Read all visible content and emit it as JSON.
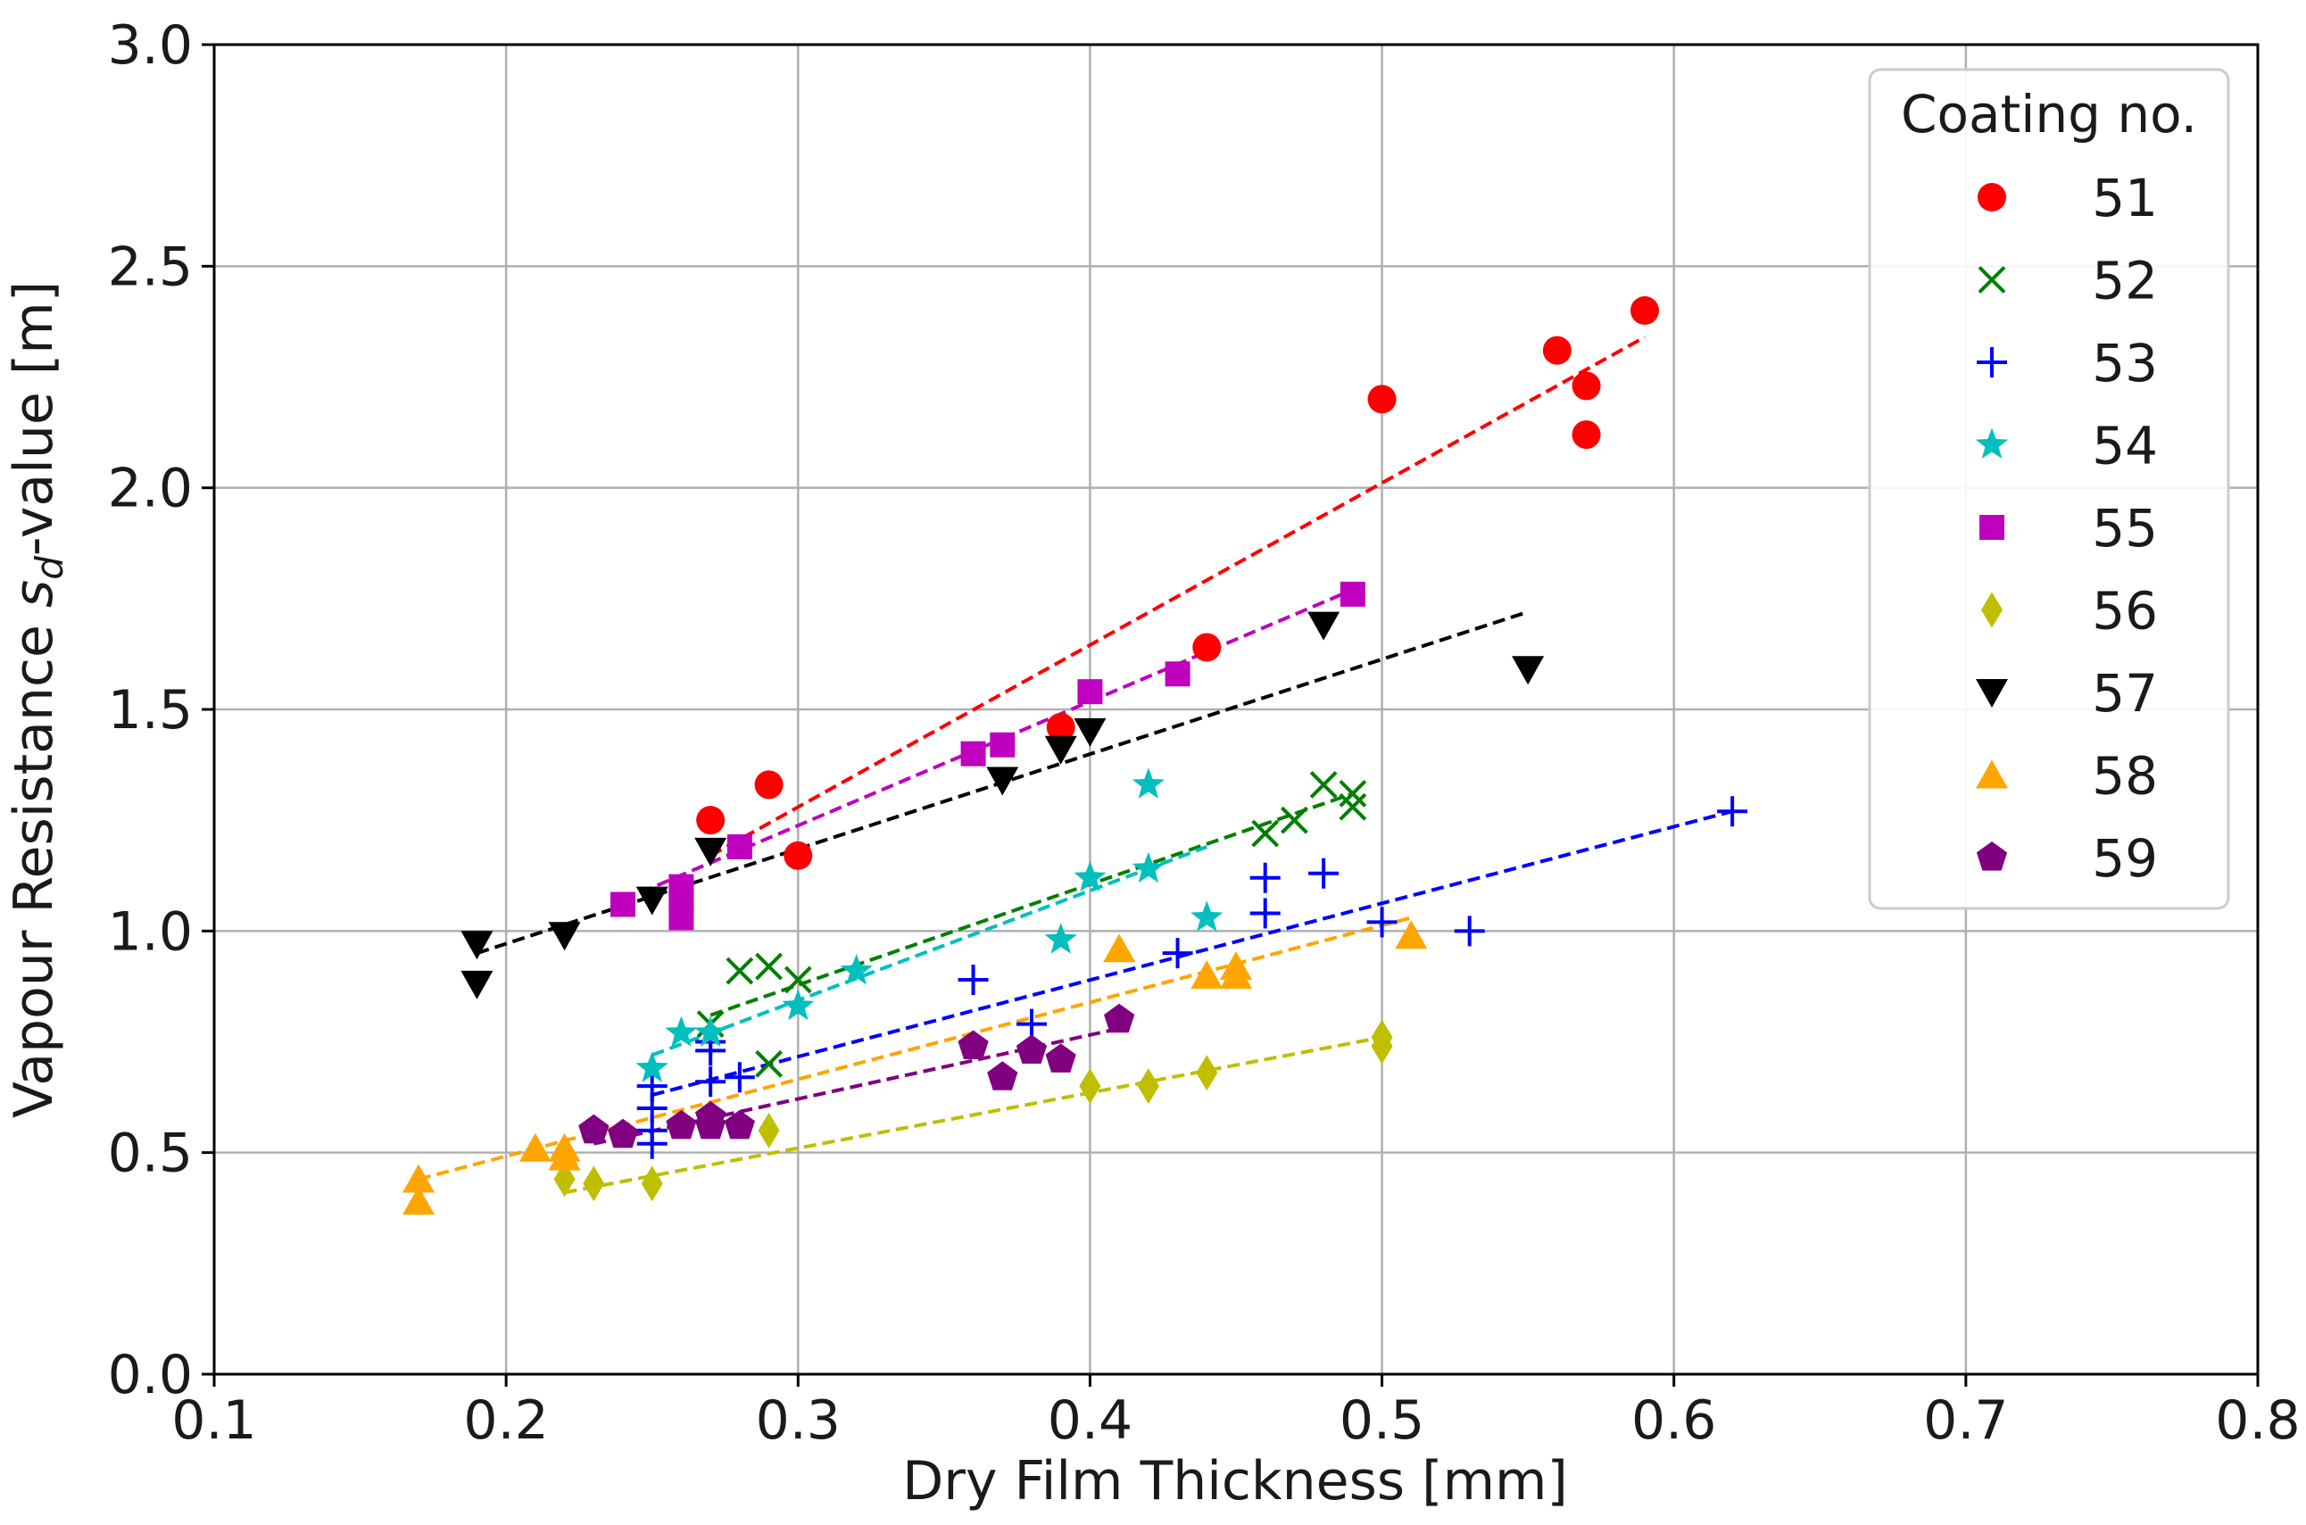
{
  "chart_data": {
    "type": "scatter",
    "title": "",
    "xlabel": "Dry Film Thickness [mm]",
    "ylabel": {
      "prefix": "Vapour Resistance ",
      "symbol": "s",
      "subscript": "d",
      "suffix": "-value [m]"
    },
    "xlim": [
      0.1,
      0.8
    ],
    "ylim": [
      0.0,
      3.0
    ],
    "xticks": [
      0.1,
      0.2,
      0.3,
      0.4,
      0.5,
      0.6,
      0.7,
      0.8
    ],
    "yticks": [
      0.0,
      0.5,
      1.0,
      1.5,
      2.0,
      2.5,
      3.0
    ],
    "xtick_labels": [
      "0.1",
      "0.2",
      "0.3",
      "0.4",
      "0.5",
      "0.6",
      "0.7",
      "0.8"
    ],
    "ytick_labels": [
      "0.0",
      "0.5",
      "1.0",
      "1.5",
      "2.0",
      "2.5",
      "3.0"
    ],
    "grid": true,
    "legend": {
      "title": "Coating no.",
      "placement": "top-right"
    },
    "series": [
      {
        "name": "51",
        "color": "#ff0000",
        "marker": "circle",
        "points": [
          [
            0.27,
            1.25
          ],
          [
            0.29,
            1.33
          ],
          [
            0.3,
            1.17
          ],
          [
            0.39,
            1.46
          ],
          [
            0.44,
            1.64
          ],
          [
            0.5,
            2.2
          ],
          [
            0.56,
            2.31
          ],
          [
            0.57,
            2.23
          ],
          [
            0.57,
            2.12
          ],
          [
            0.59,
            2.4
          ]
        ],
        "fit": [
          [
            0.27,
            1.17
          ],
          [
            0.59,
            2.34
          ]
        ]
      },
      {
        "name": "52",
        "color": "#008000",
        "marker": "x",
        "points": [
          [
            0.27,
            0.79
          ],
          [
            0.28,
            0.91
          ],
          [
            0.29,
            0.92
          ],
          [
            0.29,
            0.7
          ],
          [
            0.3,
            0.89
          ],
          [
            0.46,
            1.22
          ],
          [
            0.47,
            1.25
          ],
          [
            0.48,
            1.33
          ],
          [
            0.49,
            1.31
          ],
          [
            0.49,
            1.28
          ]
        ],
        "fit": [
          [
            0.27,
            0.81
          ],
          [
            0.49,
            1.31
          ]
        ]
      },
      {
        "name": "53",
        "color": "#0000ff",
        "marker": "plus",
        "points": [
          [
            0.25,
            0.65
          ],
          [
            0.25,
            0.6
          ],
          [
            0.25,
            0.55
          ],
          [
            0.25,
            0.52
          ],
          [
            0.27,
            0.75
          ],
          [
            0.27,
            0.73
          ],
          [
            0.27,
            0.66
          ],
          [
            0.28,
            0.67
          ],
          [
            0.36,
            0.89
          ],
          [
            0.38,
            0.79
          ],
          [
            0.43,
            0.95
          ],
          [
            0.46,
            1.12
          ],
          [
            0.46,
            1.04
          ],
          [
            0.48,
            1.13
          ],
          [
            0.5,
            1.02
          ],
          [
            0.53,
            1.0
          ],
          [
            0.62,
            1.27
          ]
        ],
        "fit": [
          [
            0.25,
            0.63
          ],
          [
            0.62,
            1.27
          ]
        ]
      },
      {
        "name": "54",
        "color": "#00bfbf",
        "marker": "star",
        "points": [
          [
            0.25,
            0.69
          ],
          [
            0.26,
            0.77
          ],
          [
            0.27,
            0.77
          ],
          [
            0.3,
            0.83
          ],
          [
            0.32,
            0.91
          ],
          [
            0.39,
            0.98
          ],
          [
            0.4,
            1.12
          ],
          [
            0.42,
            1.14
          ],
          [
            0.42,
            1.33
          ],
          [
            0.44,
            1.03
          ]
        ],
        "fit": [
          [
            0.25,
            0.72
          ],
          [
            0.44,
            1.19
          ]
        ]
      },
      {
        "name": "55",
        "color": "#bf00bf",
        "marker": "square",
        "points": [
          [
            0.24,
            1.06
          ],
          [
            0.26,
            1.1
          ],
          [
            0.26,
            1.07
          ],
          [
            0.26,
            1.03
          ],
          [
            0.28,
            1.19
          ],
          [
            0.36,
            1.4
          ],
          [
            0.37,
            1.42
          ],
          [
            0.4,
            1.54
          ],
          [
            0.43,
            1.58
          ],
          [
            0.49,
            1.76
          ]
        ],
        "fit": [
          [
            0.24,
            1.07
          ],
          [
            0.49,
            1.77
          ]
        ]
      },
      {
        "name": "56",
        "color": "#bfbf00",
        "marker": "diamond",
        "points": [
          [
            0.22,
            0.44
          ],
          [
            0.23,
            0.43
          ],
          [
            0.25,
            0.43
          ],
          [
            0.29,
            0.55
          ],
          [
            0.4,
            0.65
          ],
          [
            0.42,
            0.65
          ],
          [
            0.44,
            0.68
          ],
          [
            0.5,
            0.74
          ],
          [
            0.5,
            0.76
          ]
        ],
        "fit": [
          [
            0.22,
            0.41
          ],
          [
            0.5,
            0.76
          ]
        ]
      },
      {
        "name": "57",
        "color": "#000000",
        "marker": "triangle-down",
        "points": [
          [
            0.19,
            0.97
          ],
          [
            0.19,
            0.88
          ],
          [
            0.22,
            0.99
          ],
          [
            0.25,
            1.07
          ],
          [
            0.27,
            1.18
          ],
          [
            0.37,
            1.34
          ],
          [
            0.39,
            1.41
          ],
          [
            0.4,
            1.45
          ],
          [
            0.48,
            1.69
          ],
          [
            0.55,
            1.59
          ]
        ],
        "fit": [
          [
            0.19,
            0.95
          ],
          [
            0.55,
            1.72
          ]
        ]
      },
      {
        "name": "58",
        "color": "#ffa500",
        "marker": "triangle-up",
        "points": [
          [
            0.17,
            0.44
          ],
          [
            0.17,
            0.39
          ],
          [
            0.21,
            0.51
          ],
          [
            0.22,
            0.51
          ],
          [
            0.22,
            0.49
          ],
          [
            0.41,
            0.96
          ],
          [
            0.44,
            0.9
          ],
          [
            0.45,
            0.92
          ],
          [
            0.45,
            0.9
          ],
          [
            0.51,
            0.99
          ]
        ],
        "fit": [
          [
            0.17,
            0.44
          ],
          [
            0.51,
            1.03
          ]
        ]
      },
      {
        "name": "59",
        "color": "#800080",
        "marker": "pentagon",
        "points": [
          [
            0.23,
            0.55
          ],
          [
            0.24,
            0.54
          ],
          [
            0.26,
            0.56
          ],
          [
            0.27,
            0.58
          ],
          [
            0.27,
            0.56
          ],
          [
            0.28,
            0.56
          ],
          [
            0.36,
            0.74
          ],
          [
            0.37,
            0.67
          ],
          [
            0.38,
            0.73
          ],
          [
            0.39,
            0.71
          ],
          [
            0.41,
            0.8
          ]
        ],
        "fit": [
          [
            0.23,
            0.52
          ],
          [
            0.41,
            0.78
          ]
        ]
      }
    ]
  }
}
